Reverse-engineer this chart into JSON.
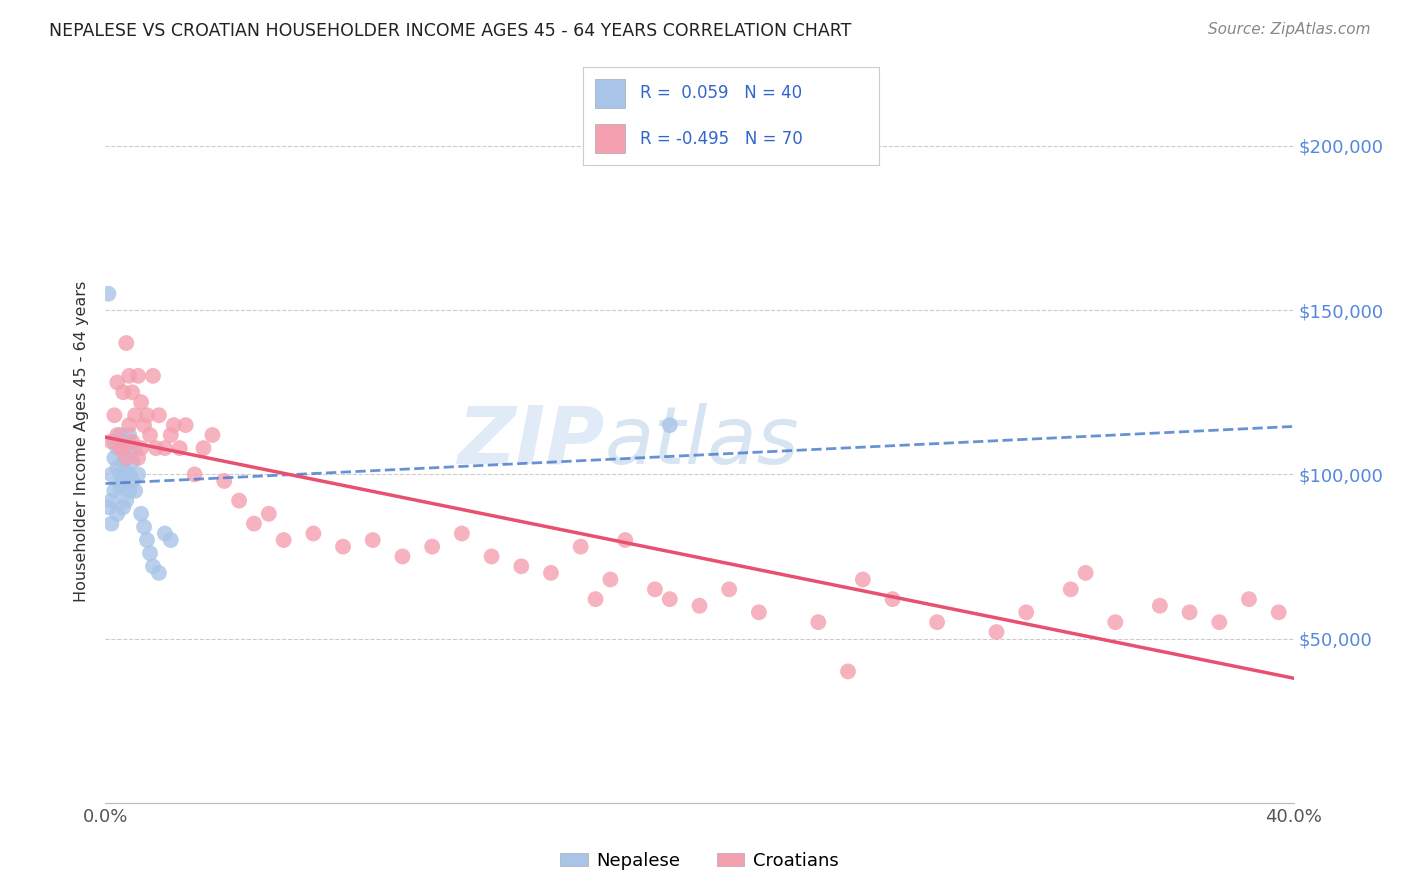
{
  "title": "NEPALESE VS CROATIAN HOUSEHOLDER INCOME AGES 45 - 64 YEARS CORRELATION CHART",
  "source": "Source: ZipAtlas.com",
  "ylabel": "Householder Income Ages 45 - 64 years",
  "ytick_labels": [
    "$50,000",
    "$100,000",
    "$150,000",
    "$200,000"
  ],
  "ytick_values": [
    50000,
    100000,
    150000,
    200000
  ],
  "xlim": [
    0.0,
    0.4
  ],
  "ylim": [
    0,
    220000
  ],
  "legend_r_nepalese": "R =  0.059",
  "legend_n_nepalese": "N = 40",
  "legend_r_croatian": "R = -0.495",
  "legend_n_croatian": "N = 70",
  "nepalese_color": "#a8c4e8",
  "croatian_color": "#f4a0b0",
  "nepalese_line_color": "#4477cc",
  "croatian_line_color": "#e85070",
  "watermark_zip": "ZIP",
  "watermark_atlas": "atlas",
  "background_color": "#ffffff",
  "nepalese_x": [
    0.001,
    0.002,
    0.002,
    0.002,
    0.003,
    0.003,
    0.003,
    0.004,
    0.004,
    0.004,
    0.005,
    0.005,
    0.005,
    0.006,
    0.006,
    0.006,
    0.006,
    0.007,
    0.007,
    0.007,
    0.007,
    0.008,
    0.008,
    0.008,
    0.008,
    0.009,
    0.009,
    0.01,
    0.01,
    0.011,
    0.012,
    0.013,
    0.014,
    0.015,
    0.016,
    0.018,
    0.02,
    0.022,
    0.19,
    0.001
  ],
  "nepalese_y": [
    90000,
    85000,
    92000,
    100000,
    95000,
    105000,
    110000,
    88000,
    102000,
    108000,
    96000,
    100000,
    112000,
    90000,
    98000,
    104000,
    108000,
    92000,
    100000,
    105000,
    110000,
    95000,
    100000,
    106000,
    112000,
    98000,
    104000,
    95000,
    108000,
    100000,
    88000,
    84000,
    80000,
    76000,
    72000,
    70000,
    82000,
    80000,
    115000,
    155000
  ],
  "croatian_x": [
    0.002,
    0.003,
    0.004,
    0.004,
    0.005,
    0.006,
    0.006,
    0.007,
    0.007,
    0.008,
    0.008,
    0.009,
    0.009,
    0.01,
    0.011,
    0.011,
    0.012,
    0.012,
    0.013,
    0.014,
    0.015,
    0.016,
    0.017,
    0.018,
    0.02,
    0.022,
    0.023,
    0.025,
    0.027,
    0.03,
    0.033,
    0.036,
    0.04,
    0.045,
    0.05,
    0.055,
    0.06,
    0.07,
    0.08,
    0.09,
    0.1,
    0.11,
    0.12,
    0.13,
    0.14,
    0.15,
    0.16,
    0.17,
    0.175,
    0.185,
    0.19,
    0.2,
    0.21,
    0.22,
    0.24,
    0.255,
    0.265,
    0.28,
    0.3,
    0.31,
    0.325,
    0.34,
    0.355,
    0.365,
    0.375,
    0.385,
    0.395,
    0.33,
    0.165,
    0.25
  ],
  "croatian_y": [
    110000,
    118000,
    112000,
    128000,
    108000,
    125000,
    108000,
    140000,
    105000,
    130000,
    115000,
    125000,
    110000,
    118000,
    130000,
    105000,
    122000,
    108000,
    115000,
    118000,
    112000,
    130000,
    108000,
    118000,
    108000,
    112000,
    115000,
    108000,
    115000,
    100000,
    108000,
    112000,
    98000,
    92000,
    85000,
    88000,
    80000,
    82000,
    78000,
    80000,
    75000,
    78000,
    82000,
    75000,
    72000,
    70000,
    78000,
    68000,
    80000,
    65000,
    62000,
    60000,
    65000,
    58000,
    55000,
    68000,
    62000,
    55000,
    52000,
    58000,
    65000,
    55000,
    60000,
    58000,
    55000,
    62000,
    58000,
    70000,
    62000,
    40000
  ]
}
